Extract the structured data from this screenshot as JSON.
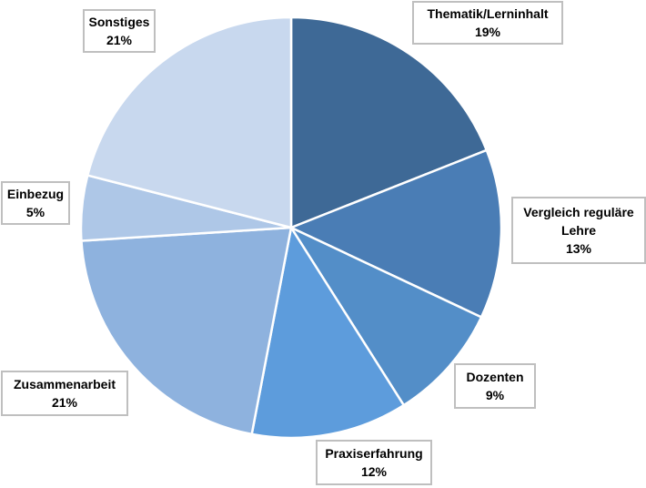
{
  "chart_data": {
    "type": "pie",
    "title": "",
    "categories": [
      "Thematik/Lerninhalt",
      "Vergleich reguläre Lehre",
      "Dozenten",
      "Praxiserfahrung",
      "Zusammenarbeit",
      "Einbezug",
      "Sonstiges"
    ],
    "values": [
      19,
      13,
      9,
      12,
      21,
      5,
      21
    ],
    "labels": [
      [
        "Thematik/Lerninhalt",
        "19%"
      ],
      [
        "Vergleich reguläre",
        "Lehre",
        "13%"
      ],
      [
        "Dozenten",
        "9%"
      ],
      [
        "Praxiserfahrung",
        "12%"
      ],
      [
        "Zusammenarbeit",
        "21%"
      ],
      [
        "Einbezug",
        "5%"
      ],
      [
        "Sonstiges",
        "21%"
      ]
    ],
    "colors": [
      "#3e6996",
      "#4a7db5",
      "#538ec8",
      "#5d9cdc",
      "#8eb2de",
      "#aec7e7",
      "#c8d8ee"
    ],
    "start": "12 o'clock",
    "direction": "clockwise"
  }
}
